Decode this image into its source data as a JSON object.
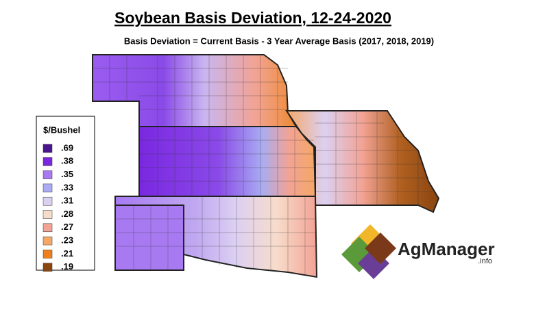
{
  "title": "Soybean Basis Deviation, 12-24-2020",
  "subtitle": "Basis Deviation = Current Basis - 3 Year Average Basis (2017, 2018, 2019)",
  "legend": {
    "title": "$/Bushel",
    "items": [
      {
        "label": ".69",
        "color": "#4b1590"
      },
      {
        "label": ".38",
        "color": "#7a28e0"
      },
      {
        "label": ".35",
        "color": "#a77af2"
      },
      {
        "label": ".33",
        "color": "#a9acf2"
      },
      {
        "label": ".31",
        "color": "#dcd0f2"
      },
      {
        "label": ".28",
        "color": "#f7dccb"
      },
      {
        "label": ".27",
        "color": "#f2a394"
      },
      {
        "label": ".23",
        "color": "#f5a765"
      },
      {
        "label": ".21",
        "color": "#ee7f1c"
      },
      {
        "label": ".19",
        "color": "#8a4510"
      }
    ]
  },
  "logo": {
    "name": "AgManager",
    "suffix": ".info"
  }
}
